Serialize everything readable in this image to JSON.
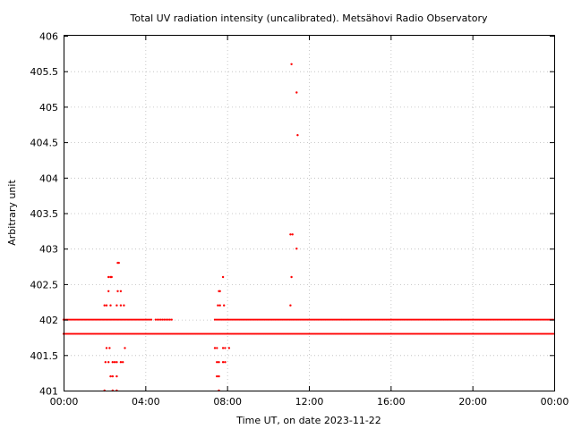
{
  "chart_data": {
    "type": "scatter",
    "title": "Total UV radiation intensity (uncalibrated). Metsähovi Radio Observatory",
    "xlabel": "Time UT, on date 2023-11-22",
    "ylabel": "Arbitrary unit",
    "xlim": [
      0,
      24
    ],
    "ylim": [
      401,
      406
    ],
    "x_ticks": [
      {
        "value": 0,
        "label": "00:00"
      },
      {
        "value": 4,
        "label": "04:00"
      },
      {
        "value": 8,
        "label": "08:00"
      },
      {
        "value": 12,
        "label": "12:00"
      },
      {
        "value": 16,
        "label": "16:00"
      },
      {
        "value": 20,
        "label": "20:00"
      },
      {
        "value": 24,
        "label": "00:00"
      }
    ],
    "y_ticks": [
      {
        "value": 401,
        "label": "401"
      },
      {
        "value": 401.5,
        "label": "401.5"
      },
      {
        "value": 402,
        "label": "402"
      },
      {
        "value": 402.5,
        "label": "402.5"
      },
      {
        "value": 403,
        "label": "403"
      },
      {
        "value": 403.5,
        "label": "403.5"
      },
      {
        "value": 404,
        "label": "404"
      },
      {
        "value": 404.5,
        "label": "404.5"
      },
      {
        "value": 405,
        "label": "405"
      },
      {
        "value": 405.5,
        "label": "405.5"
      },
      {
        "value": 406,
        "label": "406"
      }
    ],
    "grid": true,
    "color": "#ff0000",
    "baseline_series": [
      {
        "y": 401.8,
        "x_ranges": [
          [
            0,
            24
          ]
        ]
      },
      {
        "y": 402.0,
        "x_ranges": [
          [
            0,
            4.3
          ],
          [
            4.5,
            5.3
          ],
          [
            7.4,
            24
          ]
        ]
      }
    ],
    "points": [
      [
        2.0,
        402.2
      ],
      [
        2.1,
        402.2
      ],
      [
        2.3,
        402.2
      ],
      [
        2.6,
        402.2
      ],
      [
        2.8,
        402.2
      ],
      [
        2.95,
        402.2
      ],
      [
        2.2,
        402.4
      ],
      [
        2.65,
        402.4
      ],
      [
        2.8,
        402.4
      ],
      [
        2.2,
        402.6
      ],
      [
        2.3,
        402.6
      ],
      [
        2.35,
        402.6
      ],
      [
        2.65,
        402.8
      ],
      [
        2.7,
        402.8
      ],
      [
        2.1,
        401.6
      ],
      [
        2.25,
        401.6
      ],
      [
        3.0,
        401.6
      ],
      [
        2.05,
        401.4
      ],
      [
        2.2,
        401.4
      ],
      [
        2.4,
        401.4
      ],
      [
        2.5,
        401.4
      ],
      [
        2.6,
        401.4
      ],
      [
        2.8,
        401.4
      ],
      [
        2.9,
        401.4
      ],
      [
        2.3,
        401.2
      ],
      [
        2.4,
        401.2
      ],
      [
        2.6,
        401.2
      ],
      [
        2.0,
        401.0
      ],
      [
        2.4,
        401.0
      ],
      [
        2.6,
        401.0
      ],
      [
        7.4,
        401.6
      ],
      [
        7.5,
        401.6
      ],
      [
        7.8,
        401.6
      ],
      [
        7.9,
        401.6
      ],
      [
        8.1,
        401.6
      ],
      [
        7.5,
        401.4
      ],
      [
        7.6,
        401.4
      ],
      [
        7.8,
        401.4
      ],
      [
        7.9,
        401.4
      ],
      [
        7.5,
        401.2
      ],
      [
        7.6,
        401.2
      ],
      [
        7.6,
        401.0
      ],
      [
        7.55,
        402.2
      ],
      [
        7.65,
        402.2
      ],
      [
        7.85,
        402.2
      ],
      [
        7.6,
        402.4
      ],
      [
        7.65,
        402.4
      ],
      [
        7.8,
        402.6
      ],
      [
        11.1,
        402.2
      ],
      [
        11.15,
        402.6
      ],
      [
        11.4,
        403.0
      ],
      [
        11.1,
        403.2
      ],
      [
        11.2,
        403.2
      ],
      [
        11.45,
        404.6
      ],
      [
        11.4,
        405.2
      ],
      [
        11.15,
        405.6
      ]
    ]
  }
}
